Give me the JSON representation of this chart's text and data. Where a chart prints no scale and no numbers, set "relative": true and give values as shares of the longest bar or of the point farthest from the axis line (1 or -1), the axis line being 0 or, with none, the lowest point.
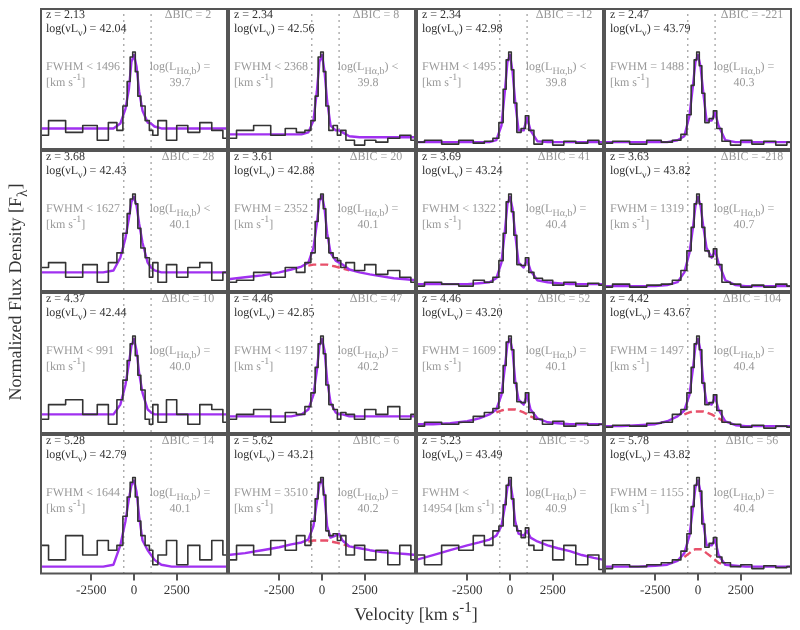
{
  "chart_data": [
    {
      "type": "line",
      "tick_labels": false,
      "relative": true,
      "xlim": [
        -5500,
        5500
      ],
      "x": [
        -5500,
        -4500,
        -3500,
        -2500,
        -1800,
        -1200,
        -800,
        -500,
        -300,
        -150,
        0,
        150,
        300,
        500,
        800,
        1000,
        1200,
        1600,
        2200,
        2800,
        3500,
        4200,
        4900,
        5500
      ],
      "ref_lines": [
        {
          "axis": "x",
          "value": -600,
          "color": "#aaaaaa",
          "line_style": "dotted"
        },
        {
          "axis": "x",
          "value": 1000,
          "color": "#aaaaaa",
          "line_style": "dotted"
        }
      ],
      "annotations": [
        "z = 2.13",
        "log(νL$_{ν}$) = 42.04",
        "ΔBIC = 2",
        "FWHM < 1496 [km s$^{-1}$]",
        "log(L$_{Hα,b}$) = 39.7"
      ],
      "series": [
        {
          "type": "step",
          "color": "#333333",
          "values": [
            0.15,
            0.3,
            0.18,
            0.25,
            0.1,
            0.28,
            0.2,
            0.45,
            0.7,
            0.95,
            1,
            0.8,
            0.55,
            0.45,
            0.3,
            0.2,
            0.15,
            0.3,
            0.1,
            0.25,
            0.18,
            0.28,
            0.2,
            0.12
          ]
        },
        {
          "type": "line",
          "color": "#a030f0",
          "values": [
            0.22,
            0.22,
            0.22,
            0.22,
            0.22,
            0.22,
            0.27,
            0.42,
            0.62,
            0.9,
            0.97,
            0.85,
            0.6,
            0.4,
            0.28,
            0.27,
            0.24,
            0.22,
            0.22,
            0.22,
            0.22,
            0.22,
            0.22,
            0.22
          ]
        }
      ]
    },
    {
      "type": "line",
      "tick_labels": false,
      "relative": true,
      "xlim": [
        -5500,
        5500
      ],
      "x": [
        -5500,
        -4500,
        -3500,
        -2500,
        -1800,
        -1200,
        -800,
        -500,
        -300,
        -150,
        0,
        150,
        300,
        500,
        800,
        1000,
        1200,
        1600,
        2200,
        2800,
        3500,
        4200,
        4900,
        5500
      ],
      "ref_lines": [
        {
          "axis": "x",
          "value": -600,
          "color": "#aaaaaa",
          "line_style": "dotted"
        },
        {
          "axis": "x",
          "value": 1000,
          "color": "#aaaaaa",
          "line_style": "dotted"
        }
      ],
      "annotations": [
        "z = 2.34",
        "log(νL$_{ν}$) = 42.56",
        "ΔBIC = 8",
        "FWHM < 2368 [km s$^{-1}$]",
        "log(L$_{Hα,b}$) < 39.8"
      ],
      "series": [
        {
          "type": "step",
          "color": "#333333",
          "values": [
            0.12,
            0.2,
            0.25,
            0.15,
            0.22,
            0.18,
            0.2,
            0.3,
            0.55,
            0.95,
            1,
            0.8,
            0.45,
            0.2,
            0.25,
            0.15,
            0.2,
            0.1,
            0.05,
            0.1,
            0.08,
            0.12,
            0.15,
            0.1
          ]
        },
        {
          "type": "line",
          "color": "#a030f0",
          "values": [
            0.16,
            0.16,
            0.16,
            0.16,
            0.16,
            0.16,
            0.18,
            0.3,
            0.6,
            0.9,
            0.97,
            0.8,
            0.5,
            0.25,
            0.2,
            0.2,
            0.18,
            0.14,
            0.13,
            0.13,
            0.13,
            0.13,
            0.13,
            0.13
          ]
        }
      ]
    },
    {
      "type": "line",
      "tick_labels": false,
      "relative": true,
      "xlim": [
        -5500,
        5500
      ],
      "x": [
        -5500,
        -4500,
        -3500,
        -2500,
        -1800,
        -1200,
        -800,
        -500,
        -300,
        -150,
        0,
        150,
        300,
        500,
        800,
        1000,
        1200,
        1600,
        2200,
        2800,
        3500,
        4200,
        4900,
        5500
      ],
      "ref_lines": [
        {
          "axis": "x",
          "value": -600,
          "color": "#aaaaaa",
          "line_style": "dotted"
        },
        {
          "axis": "x",
          "value": 1000,
          "color": "#aaaaaa",
          "line_style": "dotted"
        }
      ],
      "annotations": [
        "z = 2.34",
        "log(νL$_{ν}$) = 42.98",
        "ΔBIC = -12",
        "FWHM < 1495 [km s$^{-1}$]",
        "log(L$_{Hα,b}$) < 39.8"
      ],
      "series": [
        {
          "type": "step",
          "color": "#333333",
          "values": [
            0.08,
            0.1,
            0.06,
            0.1,
            0.07,
            0.09,
            0.12,
            0.28,
            0.62,
            0.92,
            1,
            0.82,
            0.48,
            0.18,
            0.22,
            0.35,
            0.2,
            0.06,
            0.1,
            0.05,
            0.09,
            0.07,
            0.1,
            0.06
          ]
        },
        {
          "type": "line",
          "color": "#a030f0",
          "values": [
            0.08,
            0.08,
            0.08,
            0.08,
            0.08,
            0.08,
            0.1,
            0.25,
            0.6,
            0.9,
            0.97,
            0.8,
            0.5,
            0.2,
            0.2,
            0.33,
            0.2,
            0.09,
            0.08,
            0.08,
            0.08,
            0.08,
            0.08,
            0.08
          ]
        }
      ]
    },
    {
      "type": "line",
      "tick_labels": false,
      "relative": true,
      "xlim": [
        -5500,
        5500
      ],
      "x": [
        -5500,
        -4500,
        -3500,
        -2500,
        -1800,
        -1200,
        -800,
        -500,
        -300,
        -150,
        0,
        150,
        300,
        500,
        800,
        1000,
        1200,
        1600,
        2200,
        2800,
        3500,
        4200,
        4900,
        5500
      ],
      "ref_lines": [
        {
          "axis": "x",
          "value": -600,
          "color": "#aaaaaa",
          "line_style": "dotted"
        },
        {
          "axis": "x",
          "value": 1000,
          "color": "#aaaaaa",
          "line_style": "dotted"
        }
      ],
      "annotations": [
        "z = 2.47",
        "log(νL$_{ν}$) = 43.79",
        "ΔBIC = -221",
        "FWHM = 1488 [km s$^{-1}$]",
        "log(L$_{Hα,b}$) = 40.3"
      ],
      "series": [
        {
          "type": "step",
          "color": "#333333",
          "values": [
            0.07,
            0.09,
            0.06,
            0.1,
            0.08,
            0.1,
            0.16,
            0.36,
            0.66,
            0.92,
            1,
            0.86,
            0.58,
            0.28,
            0.32,
            0.4,
            0.22,
            0.09,
            0.05,
            0.1,
            0.06,
            0.09,
            0.05,
            0.08
          ]
        },
        {
          "type": "line",
          "color": "#a030f0",
          "values": [
            0.08,
            0.08,
            0.08,
            0.08,
            0.08,
            0.1,
            0.14,
            0.35,
            0.65,
            0.9,
            0.97,
            0.85,
            0.6,
            0.3,
            0.3,
            0.38,
            0.25,
            0.1,
            0.08,
            0.08,
            0.08,
            0.08,
            0.08,
            0.08
          ]
        }
      ]
    },
    {
      "type": "line",
      "tick_labels": false,
      "relative": true,
      "ylabel": "Normalized Flux Density [F$_{λ}$]",
      "xlim": [
        -5500,
        5500
      ],
      "x": [
        -5500,
        -4500,
        -3500,
        -2500,
        -1800,
        -1200,
        -800,
        -500,
        -300,
        -150,
        0,
        150,
        300,
        500,
        800,
        1000,
        1200,
        1600,
        2200,
        2800,
        3500,
        4200,
        4900,
        5500
      ],
      "ref_lines": [
        {
          "axis": "x",
          "value": -600,
          "color": "#aaaaaa",
          "line_style": "dotted"
        },
        {
          "axis": "x",
          "value": 1000,
          "color": "#aaaaaa",
          "line_style": "dotted"
        }
      ],
      "annotations": [
        "z = 3.68",
        "log(νL$_{ν}$) = 42.43",
        "ΔBIC = 28",
        "FWHM < 1627 [km s$^{-1}$]",
        "log(L$_{Hα,b}$) < 40.1"
      ],
      "series": [
        {
          "type": "step",
          "color": "#333333",
          "values": [
            0.25,
            0.3,
            0.15,
            0.28,
            0.1,
            0.3,
            0.4,
            0.6,
            0.8,
            0.95,
            1,
            0.9,
            0.65,
            0.45,
            0.35,
            0.15,
            0.3,
            0.1,
            0.28,
            0.15,
            0.25,
            0.3,
            0.12,
            0.2
          ]
        },
        {
          "type": "line",
          "color": "#a030f0",
          "values": [
            0.2,
            0.2,
            0.2,
            0.2,
            0.2,
            0.22,
            0.35,
            0.55,
            0.75,
            0.92,
            0.97,
            0.88,
            0.7,
            0.5,
            0.3,
            0.25,
            0.22,
            0.2,
            0.2,
            0.2,
            0.2,
            0.2,
            0.2,
            0.2
          ]
        }
      ]
    },
    {
      "type": "line",
      "tick_labels": false,
      "relative": true,
      "xlim": [
        -5500,
        5500
      ],
      "x": [
        -5500,
        -4500,
        -3500,
        -2500,
        -1800,
        -1200,
        -800,
        -500,
        -300,
        -150,
        0,
        150,
        300,
        500,
        800,
        1000,
        1200,
        1600,
        2200,
        2800,
        3500,
        4200,
        4900,
        5500
      ],
      "ref_lines": [
        {
          "axis": "x",
          "value": -600,
          "color": "#aaaaaa",
          "line_style": "dotted"
        },
        {
          "axis": "x",
          "value": 1000,
          "color": "#aaaaaa",
          "line_style": "dotted"
        }
      ],
      "annotations": [
        "z = 3.61",
        "log(νL$_{ν}$) = 42.88",
        "ΔBIC = 20",
        "FWHM = 2352 [km s$^{-1}$]",
        "log(L$_{Hα,b}$) = 40.1"
      ],
      "series": [
        {
          "type": "step",
          "color": "#333333",
          "values": [
            0.1,
            0.12,
            0.2,
            0.15,
            0.25,
            0.2,
            0.3,
            0.4,
            0.72,
            0.95,
            1,
            0.85,
            0.55,
            0.4,
            0.35,
            0.32,
            0.25,
            0.3,
            0.22,
            0.28,
            0.18,
            0.22,
            0.15,
            0.1
          ]
        },
        {
          "type": "line",
          "color": "#a030f0",
          "values": [
            0.13,
            0.15,
            0.17,
            0.2,
            0.23,
            0.26,
            0.3,
            0.45,
            0.7,
            0.93,
            0.98,
            0.85,
            0.6,
            0.4,
            0.32,
            0.3,
            0.28,
            0.23,
            0.2,
            0.18,
            0.16,
            0.14,
            0.13,
            0.12
          ]
        },
        {
          "type": "line",
          "color": "#e8506a",
          "line_style": "dashed",
          "values": [
            null,
            null,
            null,
            null,
            null,
            null,
            0.27,
            0.28,
            0.28,
            0.28,
            0.28,
            0.28,
            0.28,
            0.27,
            0.26,
            0.25,
            0.24,
            0.22,
            null,
            null,
            null,
            null,
            null,
            null
          ]
        }
      ]
    },
    {
      "type": "line",
      "tick_labels": false,
      "relative": true,
      "xlim": [
        -5500,
        5500
      ],
      "x": [
        -5500,
        -4500,
        -3500,
        -2500,
        -1800,
        -1200,
        -800,
        -500,
        -300,
        -150,
        0,
        150,
        300,
        500,
        800,
        1000,
        1200,
        1600,
        2200,
        2800,
        3500,
        4200,
        4900,
        5500
      ],
      "ref_lines": [
        {
          "axis": "x",
          "value": -600,
          "color": "#aaaaaa",
          "line_style": "dotted"
        },
        {
          "axis": "x",
          "value": 1000,
          "color": "#aaaaaa",
          "line_style": "dotted"
        }
      ],
      "annotations": [
        "z = 3.69",
        "log(νL$_{ν}$) = 43.24",
        "ΔBIC = 41",
        "FWHM < 1322 [km s$^{-1}$]",
        "log(L$_{Hα,b}$) = 40.4"
      ],
      "series": [
        {
          "type": "step",
          "color": "#333333",
          "values": [
            0.06,
            0.1,
            0.08,
            0.06,
            0.12,
            0.1,
            0.15,
            0.32,
            0.6,
            0.92,
            1,
            0.82,
            0.58,
            0.28,
            0.27,
            0.35,
            0.2,
            0.14,
            0.12,
            0.07,
            0.1,
            0.06,
            0.09,
            0.07
          ]
        },
        {
          "type": "line",
          "color": "#a030f0",
          "values": [
            0.08,
            0.08,
            0.08,
            0.08,
            0.09,
            0.1,
            0.14,
            0.3,
            0.62,
            0.9,
            0.97,
            0.85,
            0.6,
            0.3,
            0.25,
            0.33,
            0.22,
            0.12,
            0.1,
            0.09,
            0.08,
            0.08,
            0.08,
            0.08
          ]
        }
      ]
    },
    {
      "type": "line",
      "tick_labels": false,
      "relative": true,
      "xlim": [
        -5500,
        5500
      ],
      "x": [
        -5500,
        -4500,
        -3500,
        -2500,
        -1800,
        -1200,
        -800,
        -500,
        -300,
        -150,
        0,
        150,
        300,
        500,
        800,
        1000,
        1200,
        1600,
        2200,
        2800,
        3500,
        4200,
        4900,
        5500
      ],
      "ref_lines": [
        {
          "axis": "x",
          "value": -600,
          "color": "#aaaaaa",
          "line_style": "dotted"
        },
        {
          "axis": "x",
          "value": 1000,
          "color": "#aaaaaa",
          "line_style": "dotted"
        }
      ],
      "annotations": [
        "z = 3.63",
        "log(νL$_{ν}$) = 43.82",
        "ΔBIC = -218",
        "FWHM = 1319 [km s$^{-1}$]",
        "log(L$_{Hα,b}$) = 40.7"
      ],
      "series": [
        {
          "type": "step",
          "color": "#333333",
          "values": [
            0.05,
            0.08,
            0.05,
            0.07,
            0.08,
            0.12,
            0.22,
            0.42,
            0.66,
            0.9,
            1,
            0.9,
            0.66,
            0.42,
            0.36,
            0.44,
            0.28,
            0.1,
            0.08,
            0.05,
            0.07,
            0.05,
            0.08,
            0.06
          ]
        },
        {
          "type": "line",
          "color": "#a030f0",
          "values": [
            0.06,
            0.06,
            0.06,
            0.06,
            0.07,
            0.1,
            0.2,
            0.4,
            0.65,
            0.88,
            0.97,
            0.88,
            0.68,
            0.45,
            0.35,
            0.42,
            0.3,
            0.12,
            0.07,
            0.06,
            0.06,
            0.06,
            0.06,
            0.06
          ]
        }
      ]
    },
    {
      "type": "line",
      "tick_labels": false,
      "relative": true,
      "xlim": [
        -5500,
        5500
      ],
      "x": [
        -5500,
        -4500,
        -3500,
        -2500,
        -1800,
        -1200,
        -800,
        -500,
        -300,
        -150,
        0,
        150,
        300,
        500,
        800,
        1000,
        1200,
        1600,
        2200,
        2800,
        3500,
        4200,
        4900,
        5500
      ],
      "ref_lines": [
        {
          "axis": "x",
          "value": -600,
          "color": "#aaaaaa",
          "line_style": "dotted"
        },
        {
          "axis": "x",
          "value": 1000,
          "color": "#aaaaaa",
          "line_style": "dotted"
        }
      ],
      "annotations": [
        "z = 4.37",
        "log(νL$_{ν}$) = 42.44",
        "ΔBIC = 10",
        "FWHM < 991 [km s$^{-1}$]",
        "log(L$_{Hα,b}$) = 40.0"
      ],
      "series": [
        {
          "type": "step",
          "color": "#333333",
          "values": [
            0.15,
            0.3,
            0.35,
            0.2,
            0.3,
            0.1,
            0.35,
            0.55,
            0.75,
            0.92,
            1,
            0.8,
            0.6,
            0.45,
            0.15,
            0.1,
            0.3,
            0.12,
            0.35,
            0.2,
            0.1,
            0.3,
            0.25,
            0.12
          ]
        },
        {
          "type": "line",
          "color": "#a030f0",
          "values": [
            0.2,
            0.2,
            0.2,
            0.2,
            0.2,
            0.2,
            0.3,
            0.5,
            0.72,
            0.9,
            0.97,
            0.85,
            0.62,
            0.42,
            0.25,
            0.22,
            0.2,
            0.2,
            0.2,
            0.2,
            0.2,
            0.2,
            0.2,
            0.2
          ]
        }
      ]
    },
    {
      "type": "line",
      "tick_labels": false,
      "relative": true,
      "xlim": [
        -5500,
        5500
      ],
      "x": [
        -5500,
        -4500,
        -3500,
        -2500,
        -1800,
        -1200,
        -800,
        -500,
        -300,
        -150,
        0,
        150,
        300,
        500,
        800,
        1000,
        1200,
        1600,
        2200,
        2800,
        3500,
        4200,
        4900,
        5500
      ],
      "ref_lines": [
        {
          "axis": "x",
          "value": -600,
          "color": "#aaaaaa",
          "line_style": "dotted"
        },
        {
          "axis": "x",
          "value": 1000,
          "color": "#aaaaaa",
          "line_style": "dotted"
        }
      ],
      "annotations": [
        "z = 4.46",
        "log(νL$_{ν}$) = 42.85",
        "ΔBIC = 47",
        "FWHM < 1197 [km s$^{-1}$]",
        "log(L$_{Hα,b}$) = 40.2"
      ],
      "series": [
        {
          "type": "step",
          "color": "#333333",
          "values": [
            0.15,
            0.2,
            0.25,
            0.12,
            0.22,
            0.2,
            0.28,
            0.42,
            0.68,
            0.92,
            1,
            0.82,
            0.5,
            0.3,
            0.25,
            0.15,
            0.22,
            0.2,
            0.15,
            0.25,
            0.2,
            0.28,
            0.15,
            0.2
          ]
        },
        {
          "type": "line",
          "color": "#a030f0",
          "values": [
            0.18,
            0.18,
            0.18,
            0.18,
            0.18,
            0.2,
            0.25,
            0.4,
            0.65,
            0.9,
            0.97,
            0.85,
            0.55,
            0.32,
            0.22,
            0.2,
            0.2,
            0.18,
            0.18,
            0.18,
            0.18,
            0.18,
            0.18,
            0.18
          ]
        }
      ]
    },
    {
      "type": "line",
      "tick_labels": false,
      "relative": true,
      "xlim": [
        -5500,
        5500
      ],
      "x": [
        -5500,
        -4500,
        -3500,
        -2500,
        -1800,
        -1200,
        -800,
        -500,
        -300,
        -150,
        0,
        150,
        300,
        500,
        800,
        1000,
        1200,
        1600,
        2200,
        2800,
        3500,
        4200,
        4900,
        5500
      ],
      "ref_lines": [
        {
          "axis": "x",
          "value": -600,
          "color": "#aaaaaa",
          "line_style": "dotted"
        },
        {
          "axis": "x",
          "value": 1000,
          "color": "#aaaaaa",
          "line_style": "dotted"
        }
      ],
      "annotations": [
        "z = 4.46",
        "log(νL$_{ν}$) = 43.20",
        "ΔBIC = 52",
        "FWHM = 1609 [km s$^{-1}$]",
        "log(L$_{Hα,b}$) = 40.1"
      ],
      "series": [
        {
          "type": "step",
          "color": "#333333",
          "values": [
            0.08,
            0.12,
            0.1,
            0.12,
            0.18,
            0.22,
            0.26,
            0.42,
            0.7,
            0.94,
            1,
            0.86,
            0.52,
            0.33,
            0.32,
            0.42,
            0.22,
            0.15,
            0.1,
            0.13,
            0.08,
            0.11,
            0.09,
            0.1
          ]
        },
        {
          "type": "line",
          "color": "#a030f0",
          "values": [
            0.1,
            0.1,
            0.11,
            0.13,
            0.16,
            0.2,
            0.25,
            0.4,
            0.68,
            0.92,
            0.97,
            0.85,
            0.55,
            0.35,
            0.3,
            0.4,
            0.25,
            0.16,
            0.12,
            0.11,
            0.1,
            0.1,
            0.1,
            0.1
          ]
        },
        {
          "type": "line",
          "color": "#e8506a",
          "line_style": "dashed",
          "values": [
            null,
            null,
            null,
            null,
            null,
            null,
            0.22,
            0.24,
            0.25,
            0.25,
            0.25,
            0.25,
            0.25,
            0.24,
            0.22,
            0.2,
            0.18,
            0.15,
            null,
            null,
            null,
            null,
            null,
            null
          ]
        }
      ]
    },
    {
      "type": "line",
      "tick_labels": false,
      "relative": true,
      "xlim": [
        -5500,
        5500
      ],
      "x": [
        -5500,
        -4500,
        -3500,
        -2500,
        -1800,
        -1200,
        -800,
        -500,
        -300,
        -150,
        0,
        150,
        300,
        500,
        800,
        1000,
        1200,
        1600,
        2200,
        2800,
        3500,
        4200,
        4900,
        5500
      ],
      "ref_lines": [
        {
          "axis": "x",
          "value": -600,
          "color": "#aaaaaa",
          "line_style": "dotted"
        },
        {
          "axis": "x",
          "value": 1000,
          "color": "#aaaaaa",
          "line_style": "dotted"
        }
      ],
      "annotations": [
        "z = 4.42",
        "log(νL$_{ν}$) = 43.67",
        "ΔBIC = 104",
        "FWHM = 1497 [km s$^{-1}$]",
        "log(L$_{Hα,b}$) = 40.4"
      ],
      "series": [
        {
          "type": "step",
          "color": "#333333",
          "values": [
            0.07,
            0.09,
            0.08,
            0.11,
            0.12,
            0.2,
            0.25,
            0.42,
            0.68,
            0.92,
            1,
            0.86,
            0.52,
            0.3,
            0.32,
            0.4,
            0.24,
            0.12,
            0.1,
            0.07,
            0.09,
            0.06,
            0.08,
            0.07
          ]
        },
        {
          "type": "line",
          "color": "#a030f0",
          "values": [
            0.08,
            0.08,
            0.09,
            0.1,
            0.13,
            0.18,
            0.24,
            0.4,
            0.66,
            0.9,
            0.97,
            0.85,
            0.55,
            0.32,
            0.3,
            0.38,
            0.25,
            0.13,
            0.09,
            0.08,
            0.08,
            0.08,
            0.08,
            0.08
          ]
        },
        {
          "type": "line",
          "color": "#e8506a",
          "line_style": "dashed",
          "values": [
            null,
            null,
            null,
            null,
            null,
            null,
            0.2,
            0.22,
            0.23,
            0.23,
            0.23,
            0.23,
            0.23,
            0.22,
            0.2,
            0.18,
            0.16,
            0.12,
            null,
            null,
            null,
            null,
            null,
            null
          ]
        }
      ]
    },
    {
      "type": "line",
      "tick_labels": "x",
      "relative": true,
      "xlim": [
        -5500,
        5500
      ],
      "xticks": [
        -2500,
        0,
        2500
      ],
      "x": [
        -5500,
        -4500,
        -3500,
        -2500,
        -1800,
        -1200,
        -800,
        -500,
        -300,
        -150,
        0,
        150,
        300,
        500,
        800,
        1000,
        1200,
        1600,
        2200,
        2800,
        3500,
        4200,
        4900,
        5500
      ],
      "ref_lines": [
        {
          "axis": "x",
          "value": -600,
          "color": "#aaaaaa",
          "line_style": "dotted"
        },
        {
          "axis": "x",
          "value": 1000,
          "color": "#aaaaaa",
          "line_style": "dotted"
        }
      ],
      "annotations": [
        "z = 5.28",
        "log(νL$_{ν}$) = 42.79",
        "ΔBIC = 14",
        "FWHM < 1644 [km s$^{-1}$]",
        "log(L$_{Hα,b}$) = 40.1"
      ],
      "series": [
        {
          "type": "step",
          "color": "#333333",
          "values": [
            0.3,
            0.15,
            0.4,
            0.2,
            0.35,
            0.25,
            0.3,
            0.6,
            0.8,
            0.95,
            1,
            0.8,
            0.55,
            0.4,
            0.3,
            0.25,
            0.1,
            0.2,
            0.35,
            0.1,
            0.3,
            0.15,
            0.35,
            0.2
          ]
        },
        {
          "type": "line",
          "color": "#a030f0",
          "values": [
            0.08,
            0.08,
            0.08,
            0.08,
            0.08,
            0.1,
            0.3,
            0.55,
            0.78,
            0.92,
            0.97,
            0.85,
            0.6,
            0.35,
            0.25,
            0.2,
            0.15,
            0.1,
            0.08,
            0.08,
            0.08,
            0.08,
            0.08,
            0.08
          ]
        }
      ]
    },
    {
      "type": "line",
      "tick_labels": "x",
      "relative": true,
      "xlabel": "Velocity [km s$^{-1}$]",
      "xlim": [
        -5500,
        5500
      ],
      "xticks": [
        -2500,
        0,
        2500
      ],
      "x": [
        -5500,
        -4500,
        -3500,
        -2500,
        -1800,
        -1200,
        -800,
        -500,
        -300,
        -150,
        0,
        150,
        300,
        500,
        800,
        1000,
        1200,
        1600,
        2200,
        2800,
        3500,
        4200,
        4900,
        5500
      ],
      "ref_lines": [
        {
          "axis": "x",
          "value": -600,
          "color": "#aaaaaa",
          "line_style": "dotted"
        },
        {
          "axis": "x",
          "value": 1000,
          "color": "#aaaaaa",
          "line_style": "dotted"
        }
      ],
      "annotations": [
        "z = 5.62",
        "log(νL$_{ν}$) = 43.21",
        "ΔBIC = 6",
        "FWHM = 3510 [km s$^{-1}$]",
        "log(L$_{Hα,b}$) = 40.2"
      ],
      "series": [
        {
          "type": "step",
          "color": "#333333",
          "values": [
            0.15,
            0.3,
            0.2,
            0.35,
            0.25,
            0.4,
            0.3,
            0.55,
            0.78,
            0.95,
            1,
            0.82,
            0.45,
            0.4,
            0.42,
            0.35,
            0.4,
            0.2,
            0.3,
            0.15,
            0.25,
            0.1,
            0.3,
            0.15
          ]
        },
        {
          "type": "line",
          "color": "#a030f0",
          "values": [
            0.2,
            0.22,
            0.25,
            0.28,
            0.31,
            0.33,
            0.36,
            0.5,
            0.75,
            0.93,
            0.98,
            0.8,
            0.5,
            0.38,
            0.4,
            0.42,
            0.35,
            0.29,
            0.27,
            0.25,
            0.23,
            0.22,
            0.21,
            0.2
          ]
        },
        {
          "type": "line",
          "color": "#e8506a",
          "line_style": "dashed",
          "values": [
            null,
            null,
            null,
            null,
            null,
            null,
            0.34,
            0.35,
            0.35,
            0.35,
            0.35,
            0.35,
            0.35,
            0.34,
            0.33,
            0.32,
            0.31,
            0.29,
            null,
            null,
            null,
            null,
            null,
            null
          ]
        }
      ]
    },
    {
      "type": "line",
      "tick_labels": "x",
      "relative": true,
      "xlim": [
        -5500,
        5500
      ],
      "xticks": [
        -2500,
        0,
        2500
      ],
      "x": [
        -5500,
        -4500,
        -3500,
        -2500,
        -1800,
        -1200,
        -800,
        -500,
        -300,
        -150,
        0,
        150,
        300,
        500,
        800,
        1000,
        1200,
        1600,
        2200,
        2800,
        3500,
        4200,
        4900,
        5500
      ],
      "ref_lines": [
        {
          "axis": "x",
          "value": -600,
          "color": "#aaaaaa",
          "line_style": "dotted"
        },
        {
          "axis": "x",
          "value": 1000,
          "color": "#aaaaaa",
          "line_style": "dotted"
        }
      ],
      "annotations": [
        "z = 5.23",
        "log(νL$_{ν}$) = 43.49",
        "ΔBIC = -5",
        "FWHM < 14954 [km s$^{-1}$]",
        "log(L$_{Hα,b}$) = 40.9"
      ],
      "series": [
        {
          "type": "step",
          "color": "#333333",
          "values": [
            0.2,
            0.1,
            0.3,
            0.25,
            0.4,
            0.3,
            0.45,
            0.5,
            0.72,
            0.92,
            1,
            0.78,
            0.5,
            0.45,
            0.38,
            0.48,
            0.3,
            0.25,
            0.35,
            0.15,
            0.3,
            0.1,
            0.2,
            0.05
          ]
        },
        {
          "type": "line",
          "color": "#a030f0",
          "values": [
            0.15,
            0.2,
            0.25,
            0.3,
            0.33,
            0.36,
            0.4,
            0.5,
            0.7,
            0.9,
            0.97,
            0.8,
            0.55,
            0.42,
            0.4,
            0.45,
            0.38,
            0.34,
            0.3,
            0.27,
            0.24,
            0.2,
            0.17,
            0.15
          ]
        }
      ]
    },
    {
      "type": "line",
      "tick_labels": "x",
      "relative": true,
      "xlim": [
        -5500,
        5500
      ],
      "xticks": [
        -2500,
        0,
        2500
      ],
      "x": [
        -5500,
        -4500,
        -3500,
        -2500,
        -1800,
        -1200,
        -800,
        -500,
        -300,
        -150,
        0,
        150,
        300,
        500,
        800,
        1000,
        1200,
        1600,
        2200,
        2800,
        3500,
        4200,
        4900,
        5500
      ],
      "ref_lines": [
        {
          "axis": "x",
          "value": -600,
          "color": "#aaaaaa",
          "line_style": "dotted"
        },
        {
          "axis": "x",
          "value": 1000,
          "color": "#aaaaaa",
          "line_style": "dotted"
        }
      ],
      "annotations": [
        "z = 5.78",
        "log(νL$_{ν}$) = 43.82",
        "ΔBIC = 56",
        "FWHM = 1155 [km s$^{-1}$]",
        "log(L$_{Hα,b}$) = 40.4"
      ],
      "series": [
        {
          "type": "step",
          "color": "#333333",
          "values": [
            0.06,
            0.1,
            0.08,
            0.1,
            0.12,
            0.15,
            0.24,
            0.42,
            0.7,
            0.92,
            1,
            0.86,
            0.52,
            0.28,
            0.32,
            0.38,
            0.18,
            0.12,
            0.08,
            0.1,
            0.06,
            0.09,
            0.07,
            0.08
          ]
        },
        {
          "type": "line",
          "color": "#a030f0",
          "values": [
            0.08,
            0.08,
            0.08,
            0.09,
            0.1,
            0.14,
            0.22,
            0.4,
            0.68,
            0.9,
            0.97,
            0.85,
            0.55,
            0.3,
            0.3,
            0.36,
            0.2,
            0.1,
            0.09,
            0.08,
            0.08,
            0.08,
            0.08,
            0.08
          ]
        },
        {
          "type": "line",
          "color": "#e8506a",
          "line_style": "dashed",
          "values": [
            null,
            null,
            null,
            null,
            null,
            null,
            0.18,
            0.22,
            0.25,
            0.26,
            0.26,
            0.26,
            0.25,
            0.22,
            0.18,
            0.15,
            0.12,
            0.1,
            null,
            null,
            null,
            null,
            null,
            null
          ]
        }
      ]
    }
  ]
}
